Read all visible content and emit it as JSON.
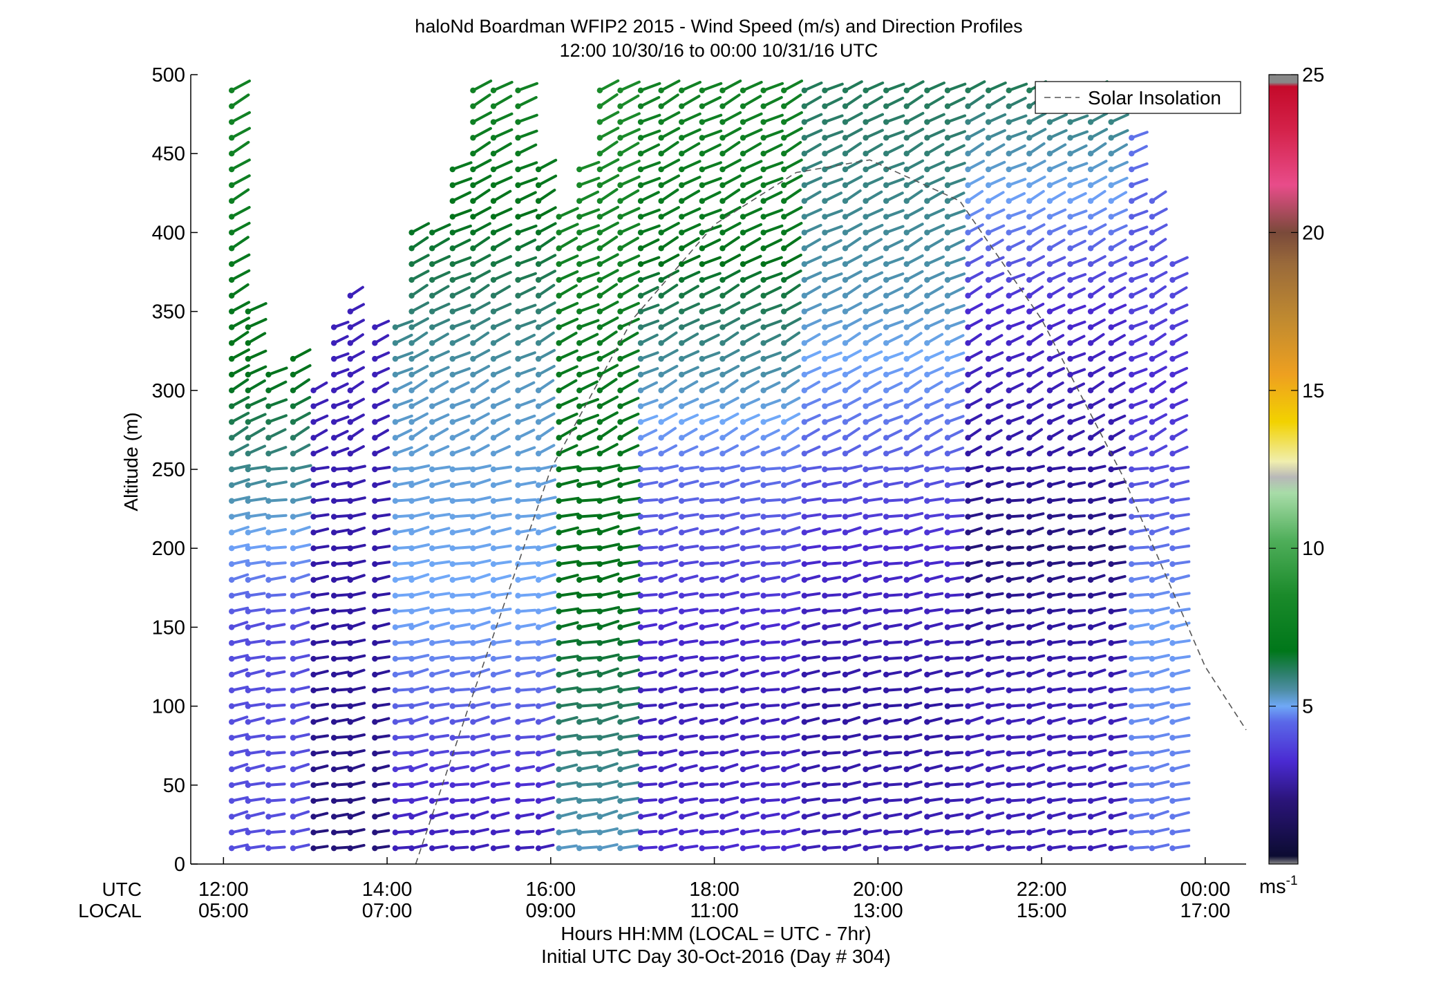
{
  "chart_data": {
    "type": "wind-barb profile",
    "title": "haloNd Boardman WFIP2 2015 - Wind Speed (m/s) and Direction Profiles",
    "subtitle": "12:00 10/30/16 to 00:00 10/31/16  UTC",
    "ylabel": "Altitude (m)",
    "xlabel": "Hours HH:MM  (LOCAL = UTC - 7hr)",
    "footer": "Initial UTC Day 30-Oct-2016 (Day # 304)",
    "row_label_utc": "UTC",
    "row_label_local": "LOCAL",
    "ylim": [
      0,
      500
    ],
    "xlim_hours": [
      11.6,
      24.5
    ],
    "y_ticks": [
      "0",
      "50",
      "100",
      "150",
      "200",
      "250",
      "300",
      "350",
      "400",
      "450",
      "500"
    ],
    "x_ticks_utc": [
      "12:00",
      "14:00",
      "16:00",
      "18:00",
      "20:00",
      "22:00",
      "00:00"
    ],
    "x_ticks_local": [
      "05:00",
      "07:00",
      "09:00",
      "11:00",
      "13:00",
      "15:00",
      "17:00"
    ],
    "legend": {
      "label": "Solar Insolation",
      "placement": "top-right"
    },
    "colorbar": {
      "min": 0,
      "max": 25,
      "ticks": [
        "5",
        "10",
        "15",
        "20",
        "25"
      ],
      "unit_base": "ms",
      "unit_exp": "-1"
    },
    "solar_insolation": {
      "x_hours": [
        14.35,
        15,
        16,
        17,
        18,
        19,
        19.9,
        21,
        22,
        23,
        24,
        24.5
      ],
      "y_m": [
        0,
        100,
        250,
        345,
        405,
        438,
        446,
        420,
        345,
        245,
        125,
        85
      ]
    },
    "profile_times_hours": [
      12.1,
      12.3,
      12.55,
      12.85,
      13.1,
      13.35,
      13.55,
      13.85,
      14.1,
      14.3,
      14.55,
      14.8,
      15.05,
      15.3,
      15.6,
      15.85,
      16.1,
      16.35,
      16.6,
      16.85,
      17.1,
      17.35,
      17.6,
      17.85,
      18.1,
      18.35,
      18.6,
      18.85,
      19.1,
      19.35,
      19.6,
      19.85,
      20.1,
      20.35,
      20.6,
      20.85,
      21.1,
      21.35,
      21.6,
      21.85,
      22.1,
      22.35,
      22.6,
      22.85,
      23.1,
      23.35,
      23.6
    ],
    "profile_top_m": [
      490,
      355,
      315,
      325,
      305,
      340,
      365,
      345,
      340,
      400,
      400,
      440,
      490,
      490,
      490,
      440,
      410,
      440,
      490,
      490,
      495,
      495,
      495,
      495,
      495,
      495,
      495,
      495,
      495,
      495,
      495,
      495,
      495,
      495,
      495,
      495,
      495,
      495,
      495,
      495,
      495,
      495,
      495,
      495,
      465,
      420,
      380
    ],
    "speed_at_levels_ms": {
      "12:00 to 13:00 UTC": {
        "10m": 3.5,
        "150m": 3.5,
        "300m": 6.5,
        "450m": 7.5
      },
      "13:00 to 14:00 UTC": {
        "10m": 1.5,
        "150m": 2,
        "300m": 2.5
      },
      "14:00 to 16:00 UTC": {
        "10m": 2.5,
        "150m": 4.5,
        "300m": 5,
        "400m": 6.5,
        "480m": 7.5
      },
      "16:00 to 17:00 UTC": {
        "10m": 5,
        "150m": 6.5,
        "300m": 7,
        "450m": 8
      },
      "17:00 to 19:00 UTC": {
        "10m": 3,
        "100m": 2.5,
        "250m": 4,
        "400m": 7,
        "490m": 7.5
      },
      "19:00 to 21:00 UTC": {
        "10m": 2.5,
        "100m": 2,
        "200m": 3,
        "350m": 5,
        "490m": 6
      },
      "21:00 to 23:00 UTC": {
        "10m": 2.5,
        "100m": 2.5,
        "200m": 1.5,
        "350m": 3,
        "490m": 6
      },
      "23:00 to 00:00 UTC": {
        "10m": 4,
        "150m": 4.5,
        "300m": 3,
        "450m": 4
      }
    },
    "grid": false
  }
}
